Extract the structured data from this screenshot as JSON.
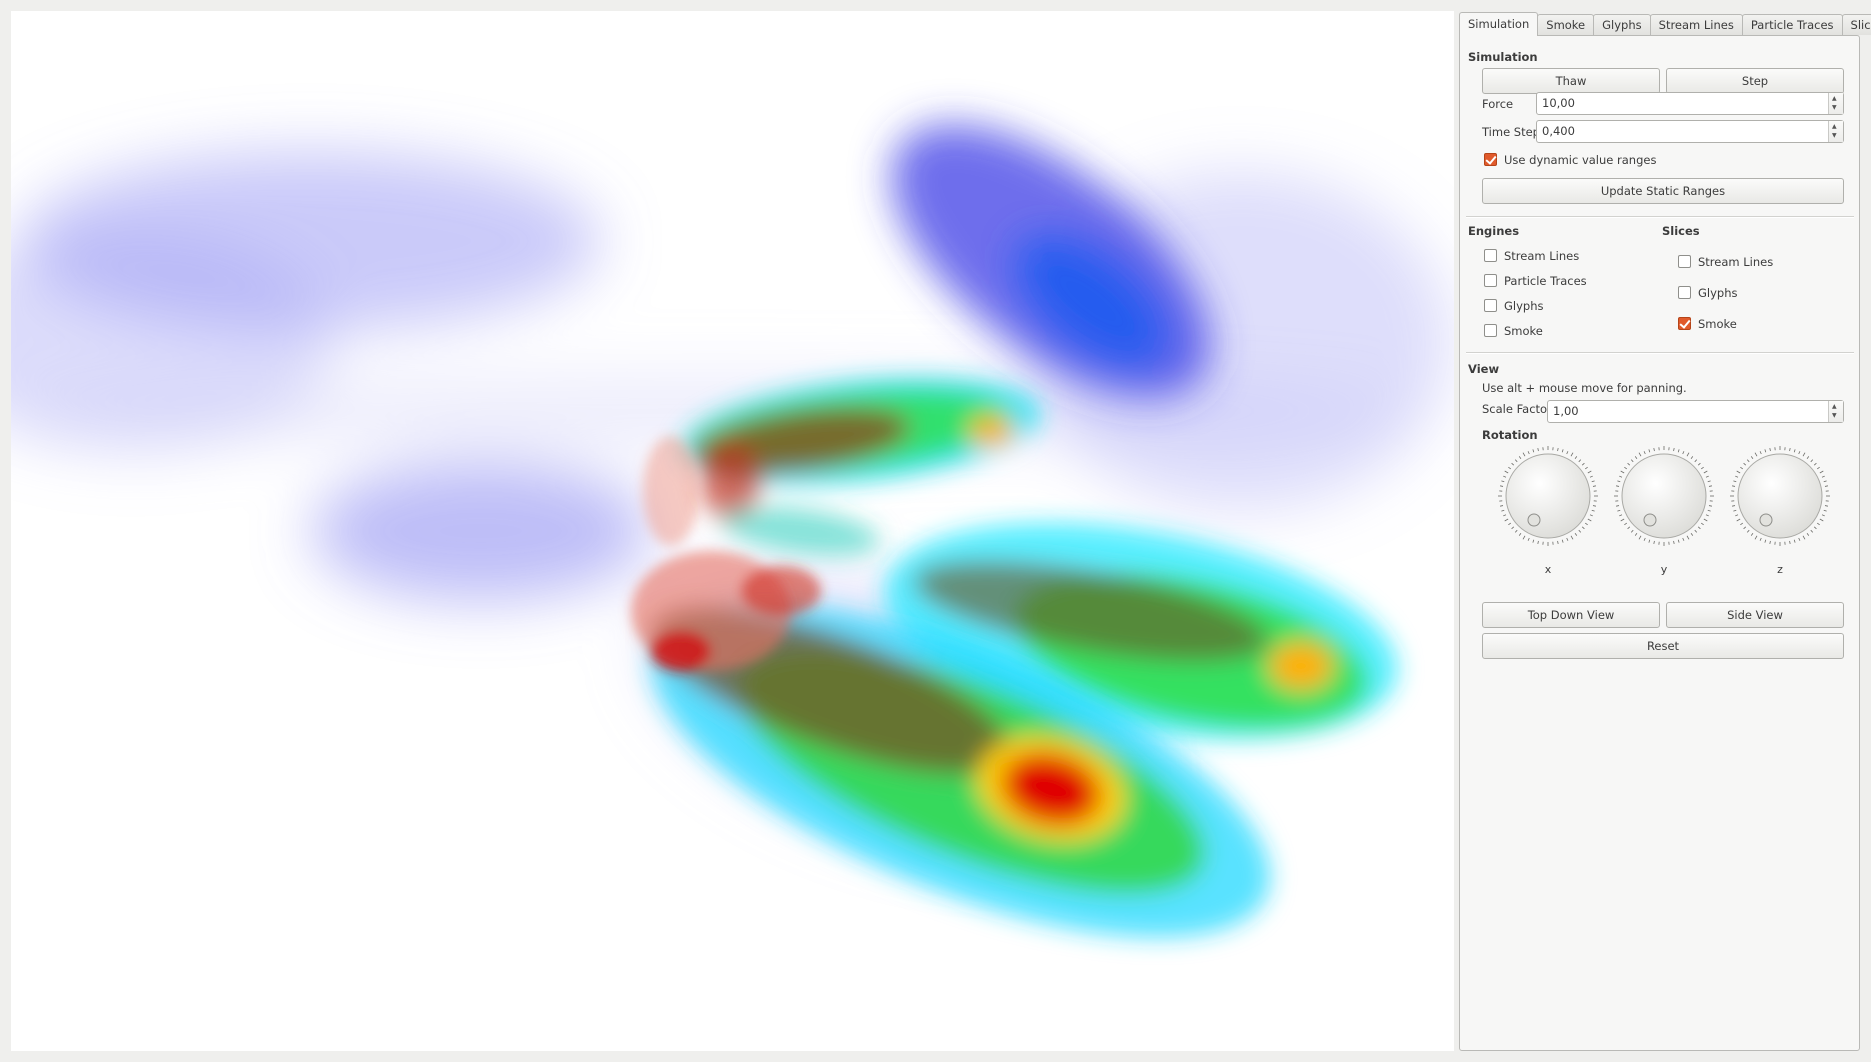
{
  "tabs": [
    {
      "label": "Simulation",
      "active": true
    },
    {
      "label": "Smoke",
      "active": false
    },
    {
      "label": "Glyphs",
      "active": false
    },
    {
      "label": "Stream Lines",
      "active": false
    },
    {
      "label": "Particle Traces",
      "active": false
    },
    {
      "label": "Slices",
      "active": false
    }
  ],
  "simulation": {
    "title": "Simulation",
    "thaw_label": "Thaw",
    "step_label": "Step",
    "force_label": "Force",
    "force_value": "10,00",
    "timestep_label": "Time Step",
    "timestep_value": "0,400",
    "dynamic_ranges_label": "Use dynamic value ranges",
    "dynamic_ranges_checked": true,
    "update_static_label": "Update Static Ranges"
  },
  "engines": {
    "title": "Engines",
    "items": [
      {
        "label": "Stream Lines",
        "checked": false
      },
      {
        "label": "Particle Traces",
        "checked": false
      },
      {
        "label": "Glyphs",
        "checked": false
      },
      {
        "label": "Smoke",
        "checked": false
      }
    ]
  },
  "slices": {
    "title": "Slices",
    "items": [
      {
        "label": "Stream Lines",
        "checked": false
      },
      {
        "label": "Glyphs",
        "checked": false
      },
      {
        "label": "Smoke",
        "checked": true
      }
    ]
  },
  "view": {
    "title": "View",
    "hint": "Use alt + mouse move for panning.",
    "scale_label": "Scale Factor",
    "scale_value": "1,00",
    "rotation_title": "Rotation",
    "dials": [
      {
        "axis": "x"
      },
      {
        "axis": "y"
      },
      {
        "axis": "z"
      }
    ],
    "top_down_label": "Top Down View",
    "side_view_label": "Side View",
    "reset_label": "Reset"
  },
  "colors": {
    "accent": "#e05a2b",
    "smoke_low": "#6e6ef0",
    "smoke_high": "#e00000"
  }
}
